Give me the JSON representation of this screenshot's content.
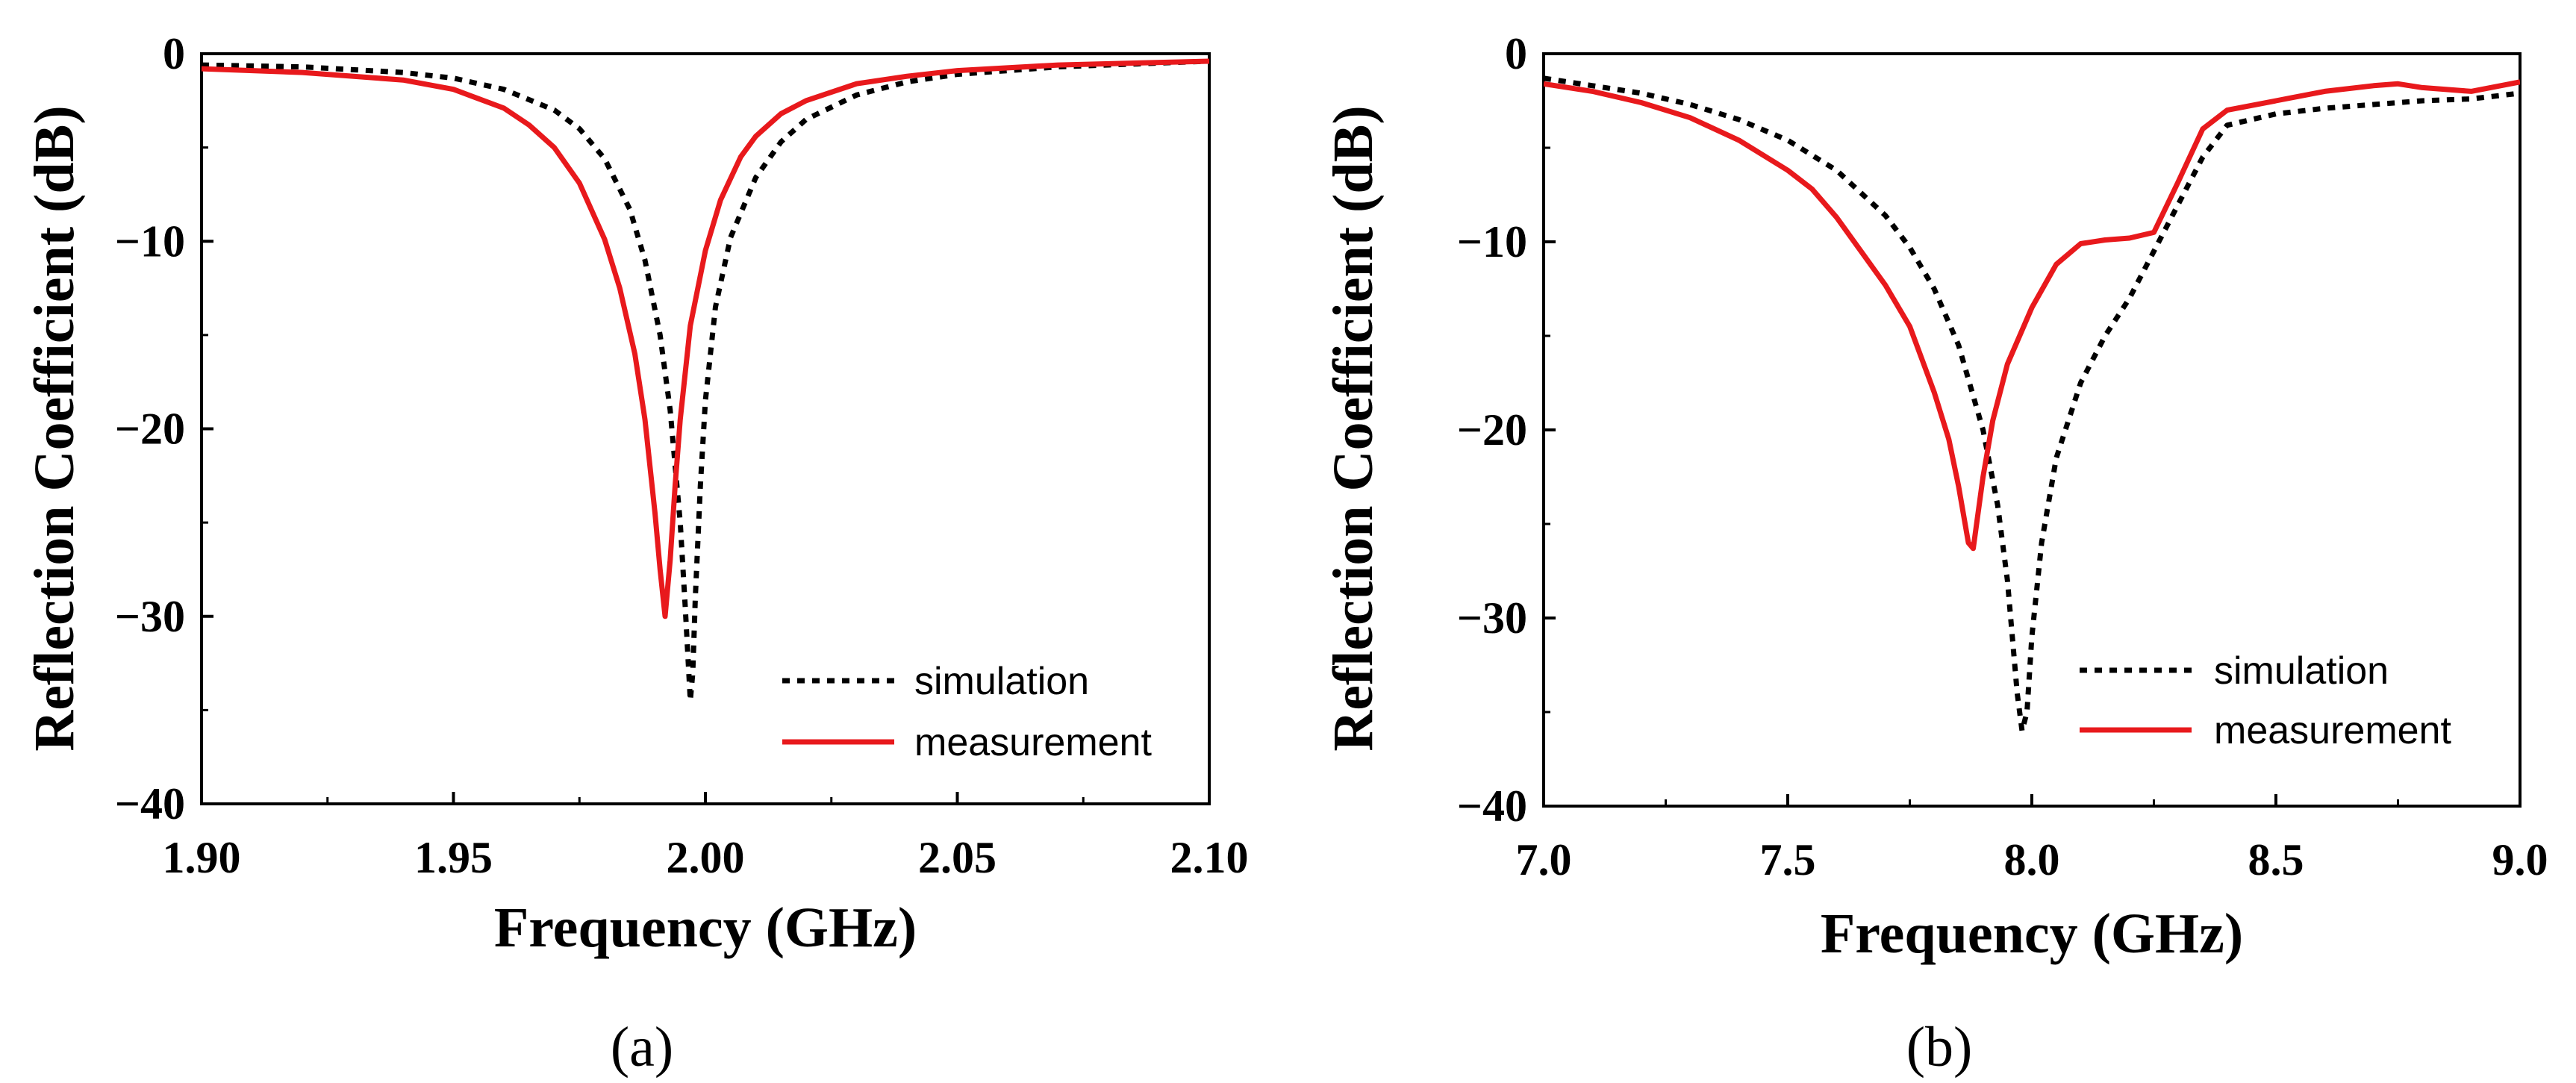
{
  "chart_data": [
    {
      "type": "line",
      "panel_label": "(a)",
      "xlabel": "Frequency (GHz)",
      "ylabel": "Reflection Coefficient (dB)",
      "xlim": [
        1.9,
        2.1
      ],
      "ylim": [
        -40,
        0
      ],
      "x_ticks": [
        1.9,
        1.95,
        2.0,
        2.05,
        2.1
      ],
      "x_tick_labels": [
        "1.90",
        "1.95",
        "2.00",
        "2.05",
        "2.10"
      ],
      "y_ticks": [
        0,
        -10,
        -20,
        -30,
        -40
      ],
      "y_tick_labels": [
        "0",
        "−10",
        "−20",
        "−30",
        "−40"
      ],
      "legend_position": "bottom-right",
      "series": [
        {
          "name": "simulation",
          "style": "dotted",
          "color": "#000000",
          "x": [
            1.9,
            1.92,
            1.94,
            1.95,
            1.96,
            1.97,
            1.975,
            1.98,
            1.985,
            1.988,
            1.991,
            1.993,
            1.995,
            1.996,
            1.9965,
            1.997,
            1.9975,
            1.998,
            1.999,
            2.0,
            2.002,
            2.005,
            2.01,
            2.015,
            2.02,
            2.03,
            2.04,
            2.05,
            2.07,
            2.1
          ],
          "values": [
            -0.6,
            -0.7,
            -1.0,
            -1.3,
            -1.9,
            -3.0,
            -4.0,
            -5.6,
            -8.3,
            -11.0,
            -15.0,
            -19.0,
            -25.0,
            -29.5,
            -32.0,
            -34.5,
            -33.0,
            -29.0,
            -23.0,
            -18.5,
            -13.5,
            -9.8,
            -6.6,
            -4.7,
            -3.5,
            -2.2,
            -1.5,
            -1.1,
            -0.7,
            -0.4
          ]
        },
        {
          "name": "measurement",
          "style": "solid",
          "color": "#e8191c",
          "x": [
            1.9,
            1.92,
            1.94,
            1.95,
            1.96,
            1.965,
            1.97,
            1.975,
            1.98,
            1.983,
            1.986,
            1.988,
            1.99,
            1.991,
            1.992,
            1.993,
            1.994,
            1.995,
            1.997,
            2.0,
            2.003,
            2.007,
            2.01,
            2.015,
            2.02,
            2.03,
            2.04,
            2.05,
            2.07,
            2.1
          ],
          "values": [
            -0.8,
            -1.0,
            -1.4,
            -1.9,
            -2.9,
            -3.8,
            -5.0,
            -6.9,
            -9.9,
            -12.5,
            -16.0,
            -19.5,
            -24.5,
            -27.5,
            -30.0,
            -27.0,
            -23.0,
            -19.5,
            -14.5,
            -10.5,
            -7.8,
            -5.5,
            -4.4,
            -3.2,
            -2.5,
            -1.6,
            -1.2,
            -0.9,
            -0.6,
            -0.4
          ]
        }
      ]
    },
    {
      "type": "line",
      "panel_label": "(b)",
      "xlabel": "Frequency (GHz)",
      "ylabel": "Reflection Coefficient (dB)",
      "xlim": [
        7.0,
        9.0
      ],
      "ylim": [
        -40,
        0
      ],
      "x_ticks": [
        7.0,
        7.5,
        8.0,
        8.5,
        9.0
      ],
      "x_tick_labels": [
        "7.0",
        "7.5",
        "8.0",
        "8.5",
        "9.0"
      ],
      "y_ticks": [
        0,
        -10,
        -20,
        -30,
        -40
      ],
      "y_tick_labels": [
        "0",
        "−10",
        "−20",
        "−30",
        "−40"
      ],
      "legend_position": "bottom-right",
      "series": [
        {
          "name": "simulation",
          "style": "dotted",
          "color": "#000000",
          "x": [
            7.0,
            7.1,
            7.2,
            7.3,
            7.4,
            7.5,
            7.6,
            7.7,
            7.75,
            7.8,
            7.85,
            7.9,
            7.93,
            7.95,
            7.97,
            7.98,
            7.99,
            8.0,
            8.02,
            8.05,
            8.1,
            8.15,
            8.2,
            8.25,
            8.3,
            8.35,
            8.4,
            8.5,
            8.6,
            8.7,
            8.8,
            8.9,
            9.0
          ],
          "values": [
            -1.3,
            -1.7,
            -2.1,
            -2.7,
            -3.5,
            -4.6,
            -6.2,
            -8.6,
            -10.3,
            -12.5,
            -15.5,
            -20.0,
            -24.0,
            -28.0,
            -34.0,
            -36.0,
            -35.0,
            -31.0,
            -26.0,
            -21.5,
            -17.5,
            -15.0,
            -13.0,
            -10.5,
            -8.0,
            -5.5,
            -3.8,
            -3.2,
            -2.9,
            -2.7,
            -2.5,
            -2.4,
            -2.1
          ]
        },
        {
          "name": "measurement",
          "style": "solid",
          "color": "#e8191c",
          "x": [
            7.0,
            7.1,
            7.2,
            7.3,
            7.4,
            7.5,
            7.55,
            7.6,
            7.65,
            7.7,
            7.75,
            7.8,
            7.83,
            7.85,
            7.87,
            7.88,
            7.9,
            7.92,
            7.95,
            8.0,
            8.05,
            8.1,
            8.15,
            8.2,
            8.25,
            8.3,
            8.35,
            8.4,
            8.5,
            8.6,
            8.7,
            8.75,
            8.8,
            8.9,
            9.0
          ],
          "values": [
            -1.6,
            -2.0,
            -2.6,
            -3.4,
            -4.6,
            -6.2,
            -7.2,
            -8.7,
            -10.5,
            -12.3,
            -14.5,
            -18.0,
            -20.5,
            -23.0,
            -26.0,
            -26.3,
            -22.5,
            -19.5,
            -16.5,
            -13.5,
            -11.2,
            -10.1,
            -9.9,
            -9.8,
            -9.5,
            -6.8,
            -4.0,
            -3.0,
            -2.5,
            -2.0,
            -1.7,
            -1.6,
            -1.8,
            -2.0,
            -1.5
          ]
        }
      ]
    }
  ]
}
